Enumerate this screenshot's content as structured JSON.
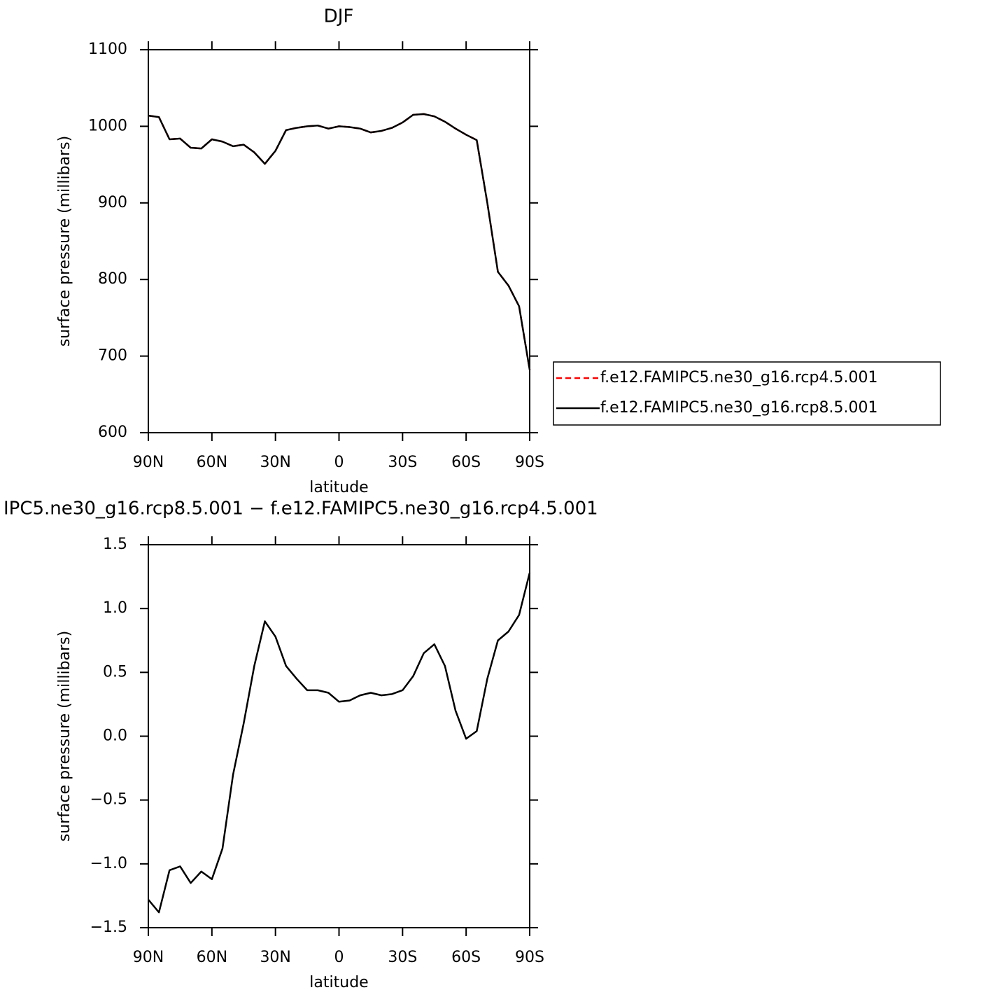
{
  "chart_data": [
    {
      "type": "line",
      "title": "DJF",
      "x_label": "latitude",
      "y_label": "surface pressure (millibars)",
      "x": [
        90,
        85,
        80,
        75,
        70,
        65,
        60,
        55,
        50,
        45,
        40,
        35,
        30,
        25,
        20,
        15,
        10,
        5,
        0,
        -5,
        -10,
        -15,
        -20,
        -25,
        -30,
        -35,
        -40,
        -45,
        -50,
        -55,
        -60,
        -65,
        -70,
        -75,
        -80,
        -85,
        -90
      ],
      "series": [
        {
          "name": "f.e12.FAMIPC5.ne30_g16.rcp4.5.001",
          "color": "#ff0000",
          "line_style": "dashed",
          "values": [
            1014,
            1012,
            983,
            984,
            972,
            971,
            983,
            980,
            974,
            976,
            966,
            951,
            968,
            995,
            998,
            1000,
            1001,
            997,
            1000,
            999,
            997,
            992,
            994,
            998,
            1005,
            1015,
            1016,
            1013,
            1006,
            997,
            989,
            982,
            900,
            810,
            792,
            765,
            682
          ]
        },
        {
          "name": "f.e12.FAMIPC5.ne30_g16.rcp8.5.001",
          "color": "#000000",
          "line_style": "solid",
          "values": [
            1014,
            1012,
            983,
            984,
            972,
            971,
            983,
            980,
            974,
            976,
            966,
            951,
            968,
            995,
            998,
            1000,
            1001,
            997,
            1000,
            999,
            997,
            992,
            994,
            998,
            1005,
            1015,
            1016,
            1013,
            1006,
            997,
            989,
            982,
            900,
            810,
            792,
            765,
            682
          ]
        }
      ],
      "xlim": [
        90,
        -90
      ],
      "xticks": [
        {
          "value": 90,
          "label": "90N"
        },
        {
          "value": 60,
          "label": "60N"
        },
        {
          "value": 30,
          "label": "30N"
        },
        0,
        {
          "value": -30,
          "label": "30S"
        },
        {
          "value": -60,
          "label": "60S"
        },
        {
          "value": -90,
          "label": "90S"
        }
      ],
      "ylim": [
        600,
        1100
      ],
      "yticks": [
        600,
        700,
        800,
        900,
        1000,
        1100
      ],
      "legend": "right"
    },
    {
      "type": "line",
      "title": "IPC5.ne30_g16.rcp8.5.001 − f.e12.FAMIPC5.ne30_g16.rcp4.5.001",
      "x_label": "latitude",
      "y_label": "surface pressure (millibars)",
      "x": [
        90,
        85,
        80,
        75,
        70,
        65,
        60,
        55,
        50,
        45,
        40,
        35,
        30,
        25,
        20,
        15,
        10,
        5,
        0,
        -5,
        -10,
        -15,
        -20,
        -25,
        -30,
        -35,
        -40,
        -45,
        -50,
        -55,
        -60,
        -65,
        -70,
        -75,
        -80,
        -85,
        -90
      ],
      "series": [
        {
          "color": "#000000",
          "line_style": "solid",
          "values": [
            -1.28,
            -1.38,
            -1.05,
            -1.02,
            -1.15,
            -1.06,
            -1.12,
            -0.88,
            -0.3,
            0.1,
            0.55,
            0.9,
            0.78,
            0.55,
            0.45,
            0.36,
            0.36,
            0.34,
            0.27,
            0.28,
            0.32,
            0.34,
            0.32,
            0.33,
            0.36,
            0.47,
            0.65,
            0.72,
            0.55,
            0.2,
            -0.02,
            0.04,
            0.45,
            0.75,
            0.82,
            0.95,
            1.28
          ]
        }
      ],
      "xlim": [
        90,
        -90
      ],
      "xticks": [
        {
          "value": 90,
          "label": "90N"
        },
        {
          "value": 60,
          "label": "60N"
        },
        {
          "value": 30,
          "label": "30N"
        },
        0,
        {
          "value": -30,
          "label": "30S"
        },
        {
          "value": -60,
          "label": "60S"
        },
        {
          "value": -90,
          "label": "90S"
        }
      ],
      "ylim": [
        -1.5,
        1.5
      ],
      "yticks": [
        {
          "value": -1.5,
          "label": "−1.5"
        },
        {
          "value": -1.0,
          "label": "−1.0"
        },
        {
          "value": -0.5,
          "label": "−0.5"
        },
        {
          "value": 0,
          "label": "0.0"
        },
        0.5,
        {
          "value": 1.0,
          "label": "1.0"
        },
        1.5
      ]
    }
  ]
}
